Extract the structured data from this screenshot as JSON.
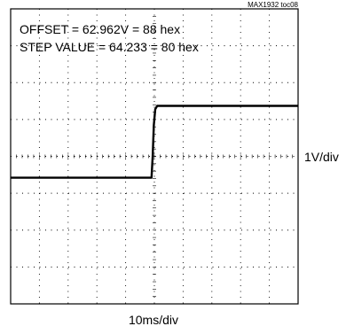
{
  "figure_id": "MAX1932 toc08",
  "annotations": {
    "offset": "OFFSET = 62.962V = 88 hex",
    "step": "STEP VALUE = 64.233 = 80 hex"
  },
  "chart_data": {
    "type": "line",
    "title": "",
    "xlabel": "10ms/div",
    "ylabel": "1V/div",
    "x_divisions": 10,
    "y_divisions": 8,
    "xlim": [
      0,
      100
    ],
    "ylim": [
      -4,
      4
    ],
    "x_unit": "ms",
    "y_unit": "V",
    "grid": true,
    "series": [
      {
        "x": [
          0,
          49.0,
          49.4,
          49.8,
          50.3,
          51.0,
          100
        ],
        "y": [
          -0.58,
          -0.58,
          0.0,
          0.85,
          1.28,
          1.37,
          1.37
        ]
      }
    ]
  }
}
